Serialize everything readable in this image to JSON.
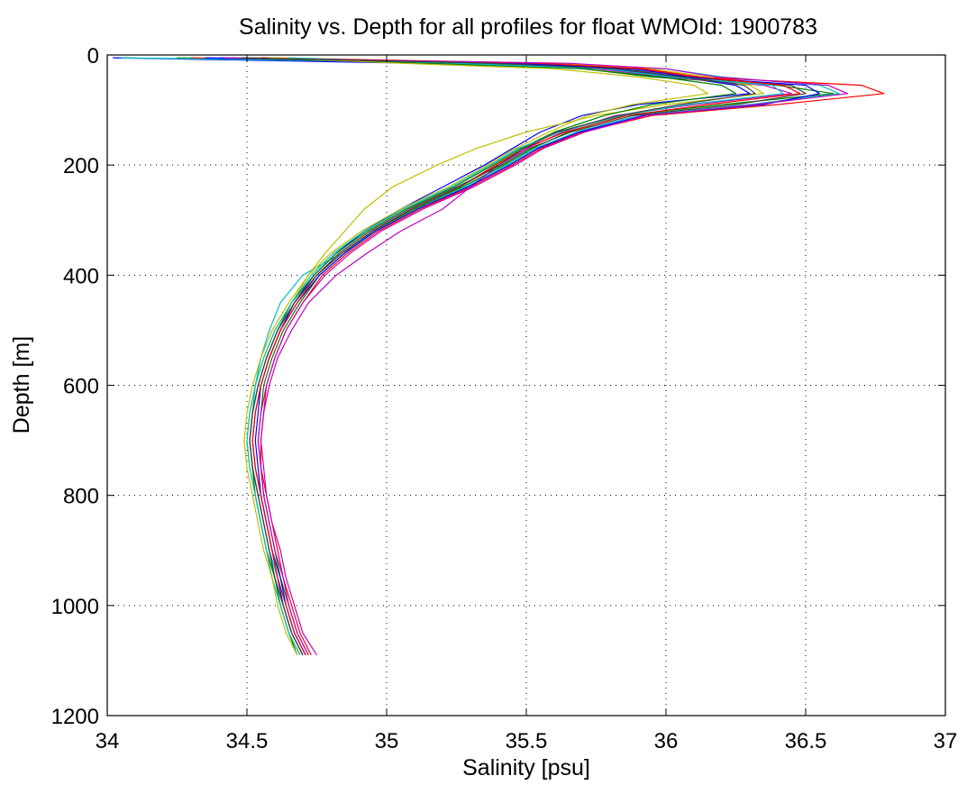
{
  "chart_data": {
    "type": "line",
    "title": "Salinity vs. Depth for all profiles for float WMOId: 1900783",
    "xlabel": "Salinity [psu]",
    "ylabel": "Depth [m]",
    "xlim": [
      34,
      37
    ],
    "ylim": [
      0,
      1200
    ],
    "y_inverted": true,
    "xticks": [
      "34",
      "34.5",
      "35",
      "35.5",
      "36",
      "36.5",
      "37"
    ],
    "yticks": [
      "0",
      "200",
      "400",
      "600",
      "800",
      "1000",
      "1200"
    ],
    "grid": "dotted",
    "legend": "none",
    "series_colors": [
      "#0000ff",
      "#008000",
      "#ff0000",
      "#00bfbf",
      "#bf00bf",
      "#bfbf00",
      "#404040"
    ],
    "depths": [
      5,
      15,
      25,
      40,
      55,
      70,
      90,
      110,
      140,
      170,
      200,
      240,
      280,
      320,
      360,
      400,
      450,
      500,
      550,
      600,
      650,
      700,
      750,
      800,
      850,
      900,
      950,
      1000,
      1050,
      1090
    ],
    "series": [
      {
        "values": [
          34.02,
          35.1,
          35.8,
          36.05,
          36.25,
          36.3,
          35.9,
          35.7,
          35.55,
          35.45,
          35.35,
          35.2,
          35.05,
          34.92,
          34.82,
          34.74,
          34.67,
          34.62,
          34.58,
          34.55,
          34.54,
          34.53,
          34.54,
          34.55,
          34.57,
          34.59,
          34.61,
          34.63,
          34.66,
          34.7
        ]
      },
      {
        "values": [
          34.25,
          35.3,
          35.7,
          35.95,
          36.4,
          36.6,
          36.2,
          35.85,
          35.65,
          35.52,
          35.42,
          35.27,
          35.1,
          34.95,
          34.85,
          34.76,
          34.69,
          34.63,
          34.59,
          34.56,
          34.55,
          34.54,
          34.55,
          34.56,
          34.58,
          34.6,
          34.62,
          34.65,
          34.68,
          34.72
        ]
      },
      {
        "values": [
          34.3,
          35.5,
          35.9,
          36.1,
          36.7,
          36.78,
          36.4,
          35.95,
          35.7,
          35.55,
          35.45,
          35.3,
          35.12,
          34.97,
          34.86,
          34.77,
          34.7,
          34.64,
          34.6,
          34.57,
          34.56,
          34.55,
          34.55,
          34.57,
          34.59,
          34.61,
          34.63,
          34.66,
          34.69,
          34.73
        ]
      },
      {
        "values": [
          34.05,
          35.4,
          36.0,
          36.2,
          36.55,
          36.62,
          36.3,
          35.9,
          35.68,
          35.53,
          35.43,
          35.28,
          35.11,
          34.96,
          34.84,
          34.7,
          34.62,
          34.58,
          34.55,
          34.53,
          34.52,
          34.51,
          34.52,
          34.54,
          34.56,
          34.58,
          34.61,
          34.64,
          34.67,
          34.71
        ]
      },
      {
        "values": [
          34.4,
          35.2,
          35.75,
          36.0,
          36.35,
          36.45,
          36.1,
          35.82,
          35.63,
          35.5,
          35.4,
          35.3,
          35.2,
          35.05,
          34.93,
          34.82,
          34.72,
          34.66,
          34.61,
          34.58,
          34.56,
          34.55,
          34.56,
          34.57,
          34.59,
          34.62,
          34.64,
          34.67,
          34.7,
          34.75
        ]
      },
      {
        "values": [
          34.6,
          35.6,
          35.95,
          36.15,
          36.3,
          36.35,
          36.0,
          35.75,
          35.5,
          35.32,
          35.18,
          35.02,
          34.92,
          34.85,
          34.78,
          34.72,
          34.66,
          34.6,
          34.56,
          34.53,
          34.51,
          34.5,
          34.51,
          34.53,
          34.55,
          34.57,
          34.6,
          34.62,
          34.65,
          34.69
        ]
      },
      {
        "values": [
          34.5,
          35.35,
          35.85,
          36.05,
          36.45,
          36.5,
          36.25,
          35.88,
          35.66,
          35.51,
          35.41,
          35.25,
          35.08,
          34.94,
          34.83,
          34.75,
          34.67,
          34.61,
          34.57,
          34.54,
          34.52,
          34.51,
          34.52,
          34.54,
          34.56,
          34.58,
          34.6,
          34.63,
          34.66,
          34.7
        ]
      },
      {
        "values": [
          34.35,
          35.45,
          35.88,
          36.08,
          36.5,
          36.55,
          36.35,
          35.92,
          35.69,
          35.54,
          35.44,
          35.29,
          35.11,
          34.96,
          34.85,
          34.76,
          34.68,
          34.62,
          34.58,
          34.55,
          34.53,
          34.52,
          34.53,
          34.55,
          34.57,
          34.59,
          34.62,
          34.64,
          34.67,
          34.71
        ]
      },
      {
        "values": [
          34.45,
          35.15,
          35.7,
          35.98,
          36.2,
          36.25,
          35.95,
          35.78,
          35.6,
          35.48,
          35.38,
          35.24,
          35.07,
          34.93,
          34.82,
          34.74,
          34.66,
          34.61,
          34.57,
          34.54,
          34.52,
          34.51,
          34.52,
          34.53,
          34.55,
          34.57,
          34.6,
          34.62,
          34.65,
          34.68
        ]
      },
      {
        "values": [
          34.55,
          35.55,
          35.92,
          36.12,
          36.42,
          36.48,
          36.15,
          35.86,
          35.64,
          35.49,
          35.39,
          35.26,
          35.09,
          34.95,
          34.84,
          34.75,
          34.68,
          34.62,
          34.58,
          34.55,
          34.53,
          34.52,
          34.53,
          34.55,
          34.57,
          34.59,
          34.61,
          34.64,
          34.67,
          34.71
        ]
      },
      {
        "values": [
          34.65,
          35.25,
          35.78,
          36.02,
          36.38,
          36.42,
          36.08,
          35.84,
          35.62,
          35.47,
          35.37,
          35.23,
          35.06,
          34.92,
          34.81,
          34.73,
          34.66,
          34.6,
          34.56,
          34.53,
          34.51,
          34.5,
          34.51,
          34.53,
          34.55,
          34.57,
          34.59,
          34.62,
          34.65,
          34.69
        ]
      },
      {
        "values": [
          34.42,
          35.65,
          36.0,
          36.18,
          36.58,
          36.65,
          36.32,
          35.93,
          35.71,
          35.56,
          35.46,
          35.31,
          35.13,
          34.98,
          34.87,
          34.78,
          34.7,
          34.64,
          34.6,
          34.57,
          34.55,
          34.54,
          34.55,
          34.56,
          34.58,
          34.6,
          34.63,
          34.65,
          34.68,
          34.72
        ]
      },
      {
        "values": [
          34.58,
          35.05,
          35.6,
          35.9,
          36.1,
          36.15,
          35.88,
          35.72,
          35.58,
          35.46,
          35.36,
          35.22,
          35.05,
          34.91,
          34.8,
          34.72,
          34.65,
          34.59,
          34.55,
          34.52,
          34.5,
          34.49,
          34.5,
          34.52,
          34.54,
          34.56,
          34.59,
          34.61,
          34.64,
          34.68
        ]
      },
      {
        "values": [
          34.48,
          35.38,
          35.82,
          36.06,
          36.28,
          36.32,
          36.05,
          35.83,
          35.61,
          35.49,
          35.4,
          35.26,
          35.09,
          34.95,
          34.84,
          34.75,
          34.67,
          34.61,
          34.57,
          34.54,
          34.52,
          34.51,
          34.52,
          34.54,
          34.56,
          34.58,
          34.6,
          34.63,
          34.66,
          34.7
        ]
      }
    ]
  }
}
